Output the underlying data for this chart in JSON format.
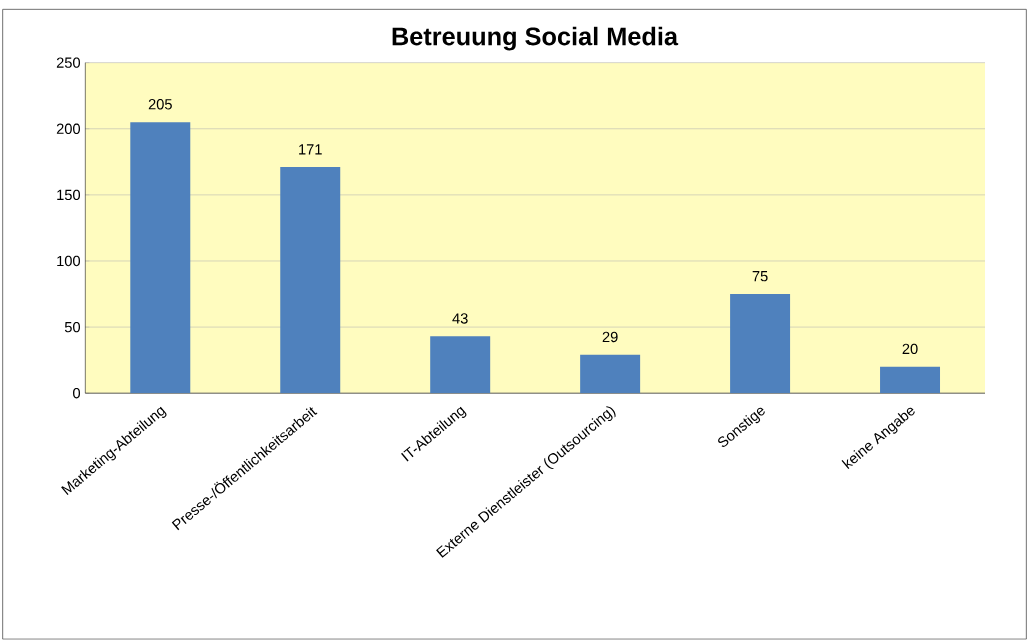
{
  "chart_data": {
    "type": "bar",
    "title": "Betreuung Social Media",
    "categories": [
      "Marketing-Abteilung",
      "Presse-/Öffentlichkeitsarbeit",
      "IT-Abteilung",
      "Externe Dienstleister (Outsourcing)",
      "Sonstige",
      "keine Angabe"
    ],
    "values": [
      205,
      171,
      43,
      29,
      75,
      20
    ],
    "color": "#4f81bd",
    "ylim": [
      0,
      250
    ],
    "yticks": [
      0,
      50,
      100,
      150,
      200,
      250
    ],
    "grid": "y",
    "data_labels": true
  }
}
